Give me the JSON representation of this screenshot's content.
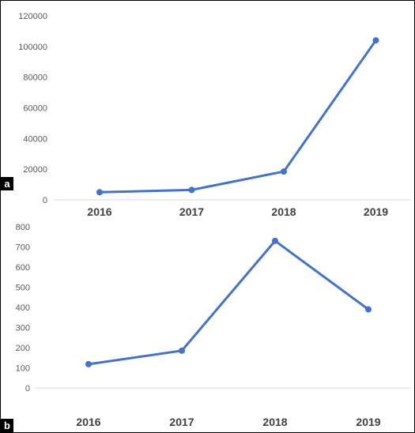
{
  "panels": [
    {
      "label": "a"
    },
    {
      "label": "b"
    }
  ],
  "series_color": "#4472c4",
  "chart_data": [
    {
      "type": "line",
      "title": "",
      "xlabel": "",
      "ylabel": "",
      "categories": [
        "2016",
        "2017",
        "2018",
        "2019"
      ],
      "series": [
        {
          "values": [
            5000,
            6500,
            18500,
            104000
          ]
        }
      ],
      "ylim": [
        0,
        120000
      ],
      "yticks": [
        0,
        20000,
        40000,
        60000,
        80000,
        100000,
        120000
      ],
      "grid": false,
      "legend": "none"
    },
    {
      "type": "line",
      "title": "",
      "xlabel": "",
      "ylabel": "",
      "categories": [
        "2016",
        "2017",
        "2018",
        "2019"
      ],
      "series": [
        {
          "values": [
            118,
            185,
            730,
            390
          ]
        }
      ],
      "ylim": [
        0,
        800
      ],
      "yticks": [
        0,
        100,
        200,
        300,
        400,
        500,
        600,
        700,
        800
      ],
      "grid": false,
      "legend": "none"
    }
  ]
}
